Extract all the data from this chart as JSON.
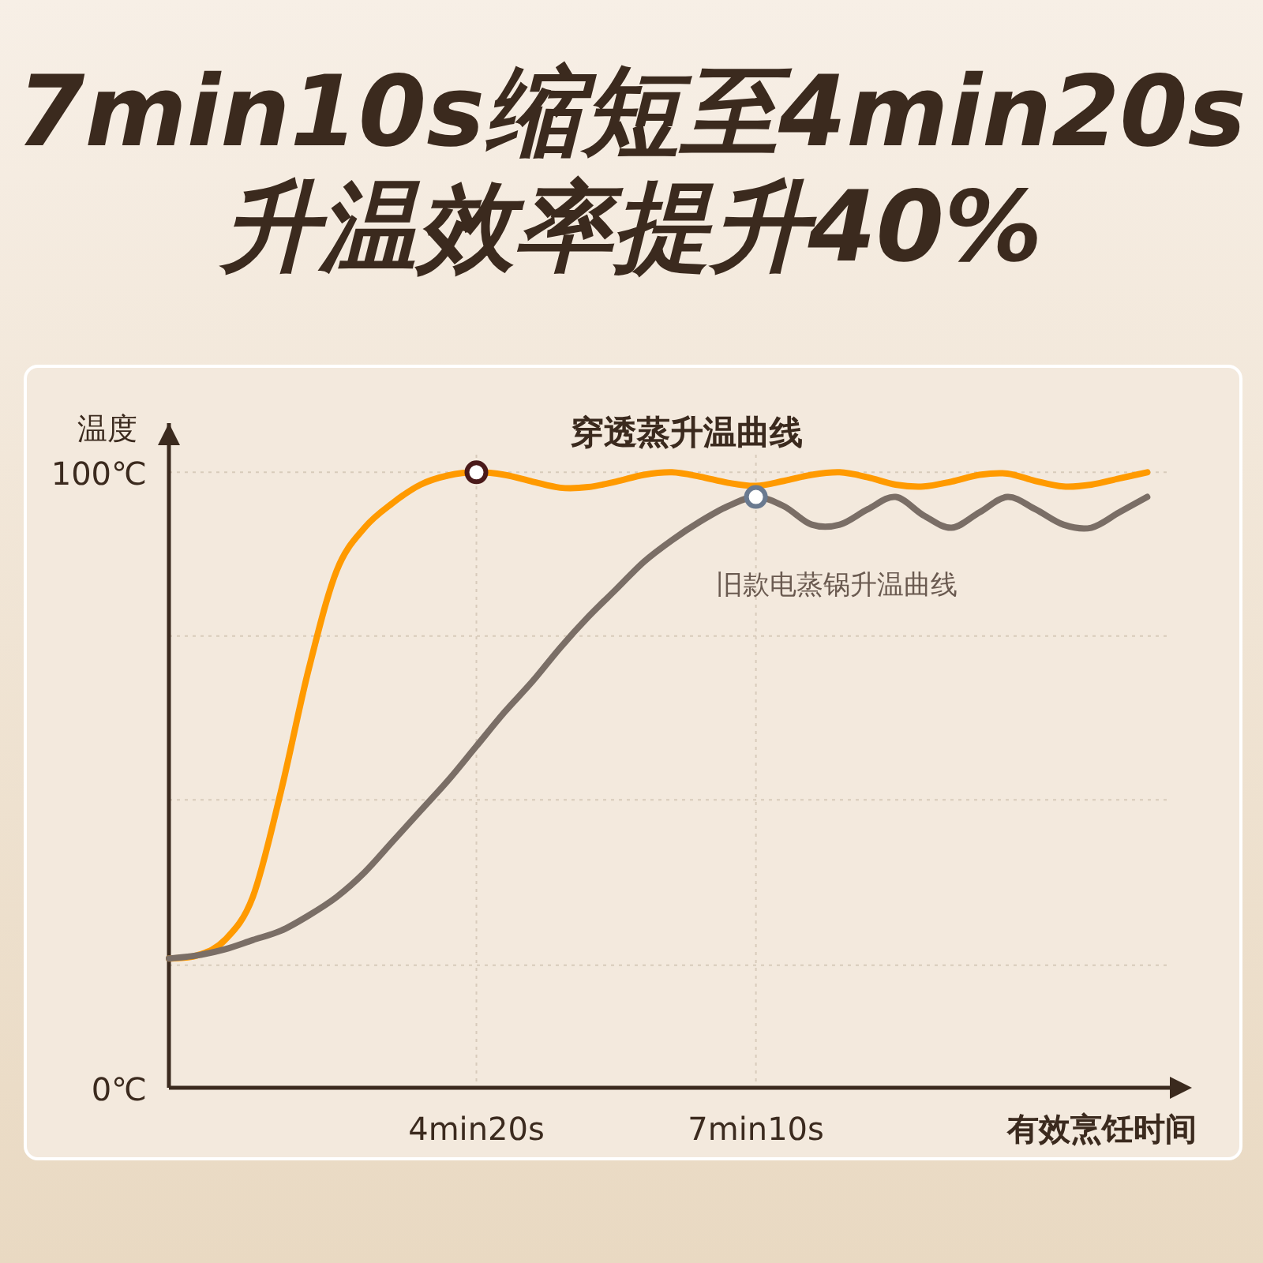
{
  "chart_data": {
    "type": "line",
    "title": "7min10s缩短至4min20s",
    "subtitle": "升温效率提升40%",
    "ylabel": "温度",
    "xlabel": "有效烹饪时间",
    "categories": [
      null,
      null,
      null,
      null,
      null,
      null,
      null,
      null,
      null,
      null,
      null,
      "4min20s",
      null,
      null,
      null,
      null,
      null,
      null,
      null,
      null,
      null,
      "7min10s",
      null,
      null,
      null,
      null,
      null,
      null,
      null,
      null,
      null,
      null,
      null,
      null,
      null,
      null
    ],
    "ylim": [
      0,
      108
    ],
    "yticks": [
      {
        "value": 0,
        "label": "0℃"
      },
      {
        "value": 19.9,
        "label": null
      },
      {
        "value": 46.8,
        "label": null
      },
      {
        "value": 73.4,
        "label": null
      },
      {
        "value": 100,
        "label": "100℃"
      }
    ],
    "grid": true,
    "series": [
      {
        "name": "穿透蒸升温曲线",
        "color": "#ff9a00",
        "values": [
          21,
          21.5,
          24,
          31,
          48,
          68,
          84,
          91,
          95,
          98,
          99.5,
          100,
          99.6,
          98.5,
          97.5,
          97.6,
          98.5,
          99.6,
          100,
          99.3,
          98.3,
          97.8,
          98.6,
          99.6,
          100,
          99.2,
          98,
          97.7,
          98.5,
          99.6,
          99.8,
          98.6,
          97.7,
          98,
          99,
          100
        ]
      },
      {
        "name": "旧款电蒸锅升温曲线",
        "color": "#7a6e66",
        "values": [
          21,
          21.5,
          22.5,
          24,
          25.5,
          28,
          31,
          35,
          40,
          45,
          50,
          55.5,
          61,
          66,
          71.5,
          76.5,
          81,
          85.5,
          89,
          92,
          94.5,
          96,
          94.5,
          91.5,
          91.5,
          94,
          96,
          93,
          91,
          93.5,
          96,
          94,
          91.5,
          91,
          93.5,
          96
        ]
      },
      {
        "type": "scatter",
        "marker": "circle",
        "color": "#4a1a1a",
        "values": [
          null,
          null,
          null,
          null,
          null,
          null,
          null,
          null,
          null,
          null,
          null,
          100,
          null,
          null,
          null,
          null,
          null,
          null,
          null,
          null,
          null,
          null,
          null,
          null,
          null,
          null,
          null,
          null,
          null,
          null,
          null,
          null,
          null,
          null,
          null,
          null
        ]
      },
      {
        "type": "scatter",
        "marker": "circle",
        "color": "#6a7a90",
        "values": [
          null,
          null,
          null,
          null,
          null,
          null,
          null,
          null,
          null,
          null,
          null,
          null,
          null,
          null,
          null,
          null,
          null,
          null,
          null,
          null,
          null,
          96,
          null,
          null,
          null,
          null,
          null,
          null,
          null,
          null,
          null,
          null,
          null,
          null,
          null,
          null
        ]
      }
    ]
  }
}
